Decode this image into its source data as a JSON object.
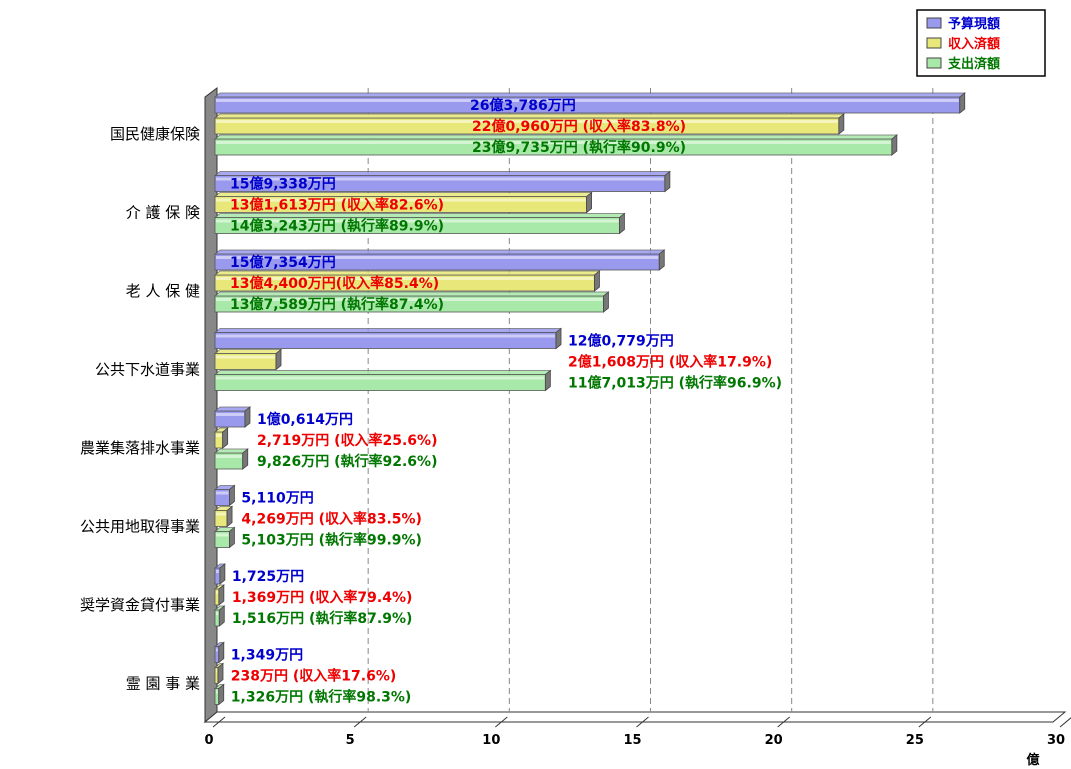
{
  "chart_data": {
    "type": "bar",
    "orientation": "horizontal",
    "unit_label": "億",
    "xlim": [
      0,
      30
    ],
    "xticks": [
      "0",
      "5",
      "10",
      "15",
      "20",
      "25",
      "30"
    ],
    "grid": "dashed vertical",
    "legend_position": "top-right",
    "categories": [
      "国民健康保険",
      "介 護 保 険",
      "老 人 保 健",
      "公共下水道事業",
      "農業集落排水事業",
      "公共用地取得事業",
      "奨学資金貸付事業",
      "霊 園 事 業"
    ],
    "series": [
      {
        "name": "予算現額",
        "color": "#9999ee",
        "values": [
          26.3786,
          15.9338,
          15.7354,
          12.0779,
          1.0614,
          0.511,
          0.1725,
          0.1349
        ],
        "labels": [
          "26億3,786万円",
          "15億9,338万円",
          "15億7,354万円",
          "12億0,779万円",
          "1億0,614万円",
          "5,110万円",
          "1,725万円",
          "1,349万円"
        ]
      },
      {
        "name": "収入済額",
        "color": "#e8e87a",
        "values": [
          22.096,
          13.1613,
          13.44,
          2.1608,
          0.2719,
          0.4269,
          0.1369,
          0.0238
        ],
        "labels": [
          "22億0,960万円 (収入率83.8%)",
          "13億1,613万円 (収入率82.6%)",
          "13億4,400万円(収入率85.4%)",
          "2億1,608万円 (収入率17.9%)",
          "2,719万円 (収入率25.6%)",
          "4,269万円 (収入率83.5%)",
          "1,369万円 (収入率79.4%)",
          "238万円 (収入率17.6%)"
        ]
      },
      {
        "name": "支出済額",
        "color": "#a8e8a8",
        "values": [
          23.9735,
          14.3243,
          13.7589,
          11.7013,
          0.9826,
          0.5103,
          0.1516,
          0.1326
        ],
        "labels": [
          "23億9,735万円 (執行率90.9%)",
          "14億3,243万円 (執行率89.9%)",
          "13億7,589万円 (執行率87.4%)",
          "11億7,013万円 (執行率96.9%)",
          "9,826万円 (執行率92.6%)",
          "5,103万円 (執行率99.9%)",
          "1,516万円 (執行率87.9%)",
          "1,326万円 (執行率98.3%)"
        ]
      }
    ],
    "label_colors": [
      "#0000cc",
      "#ee0000",
      "#007700"
    ]
  }
}
